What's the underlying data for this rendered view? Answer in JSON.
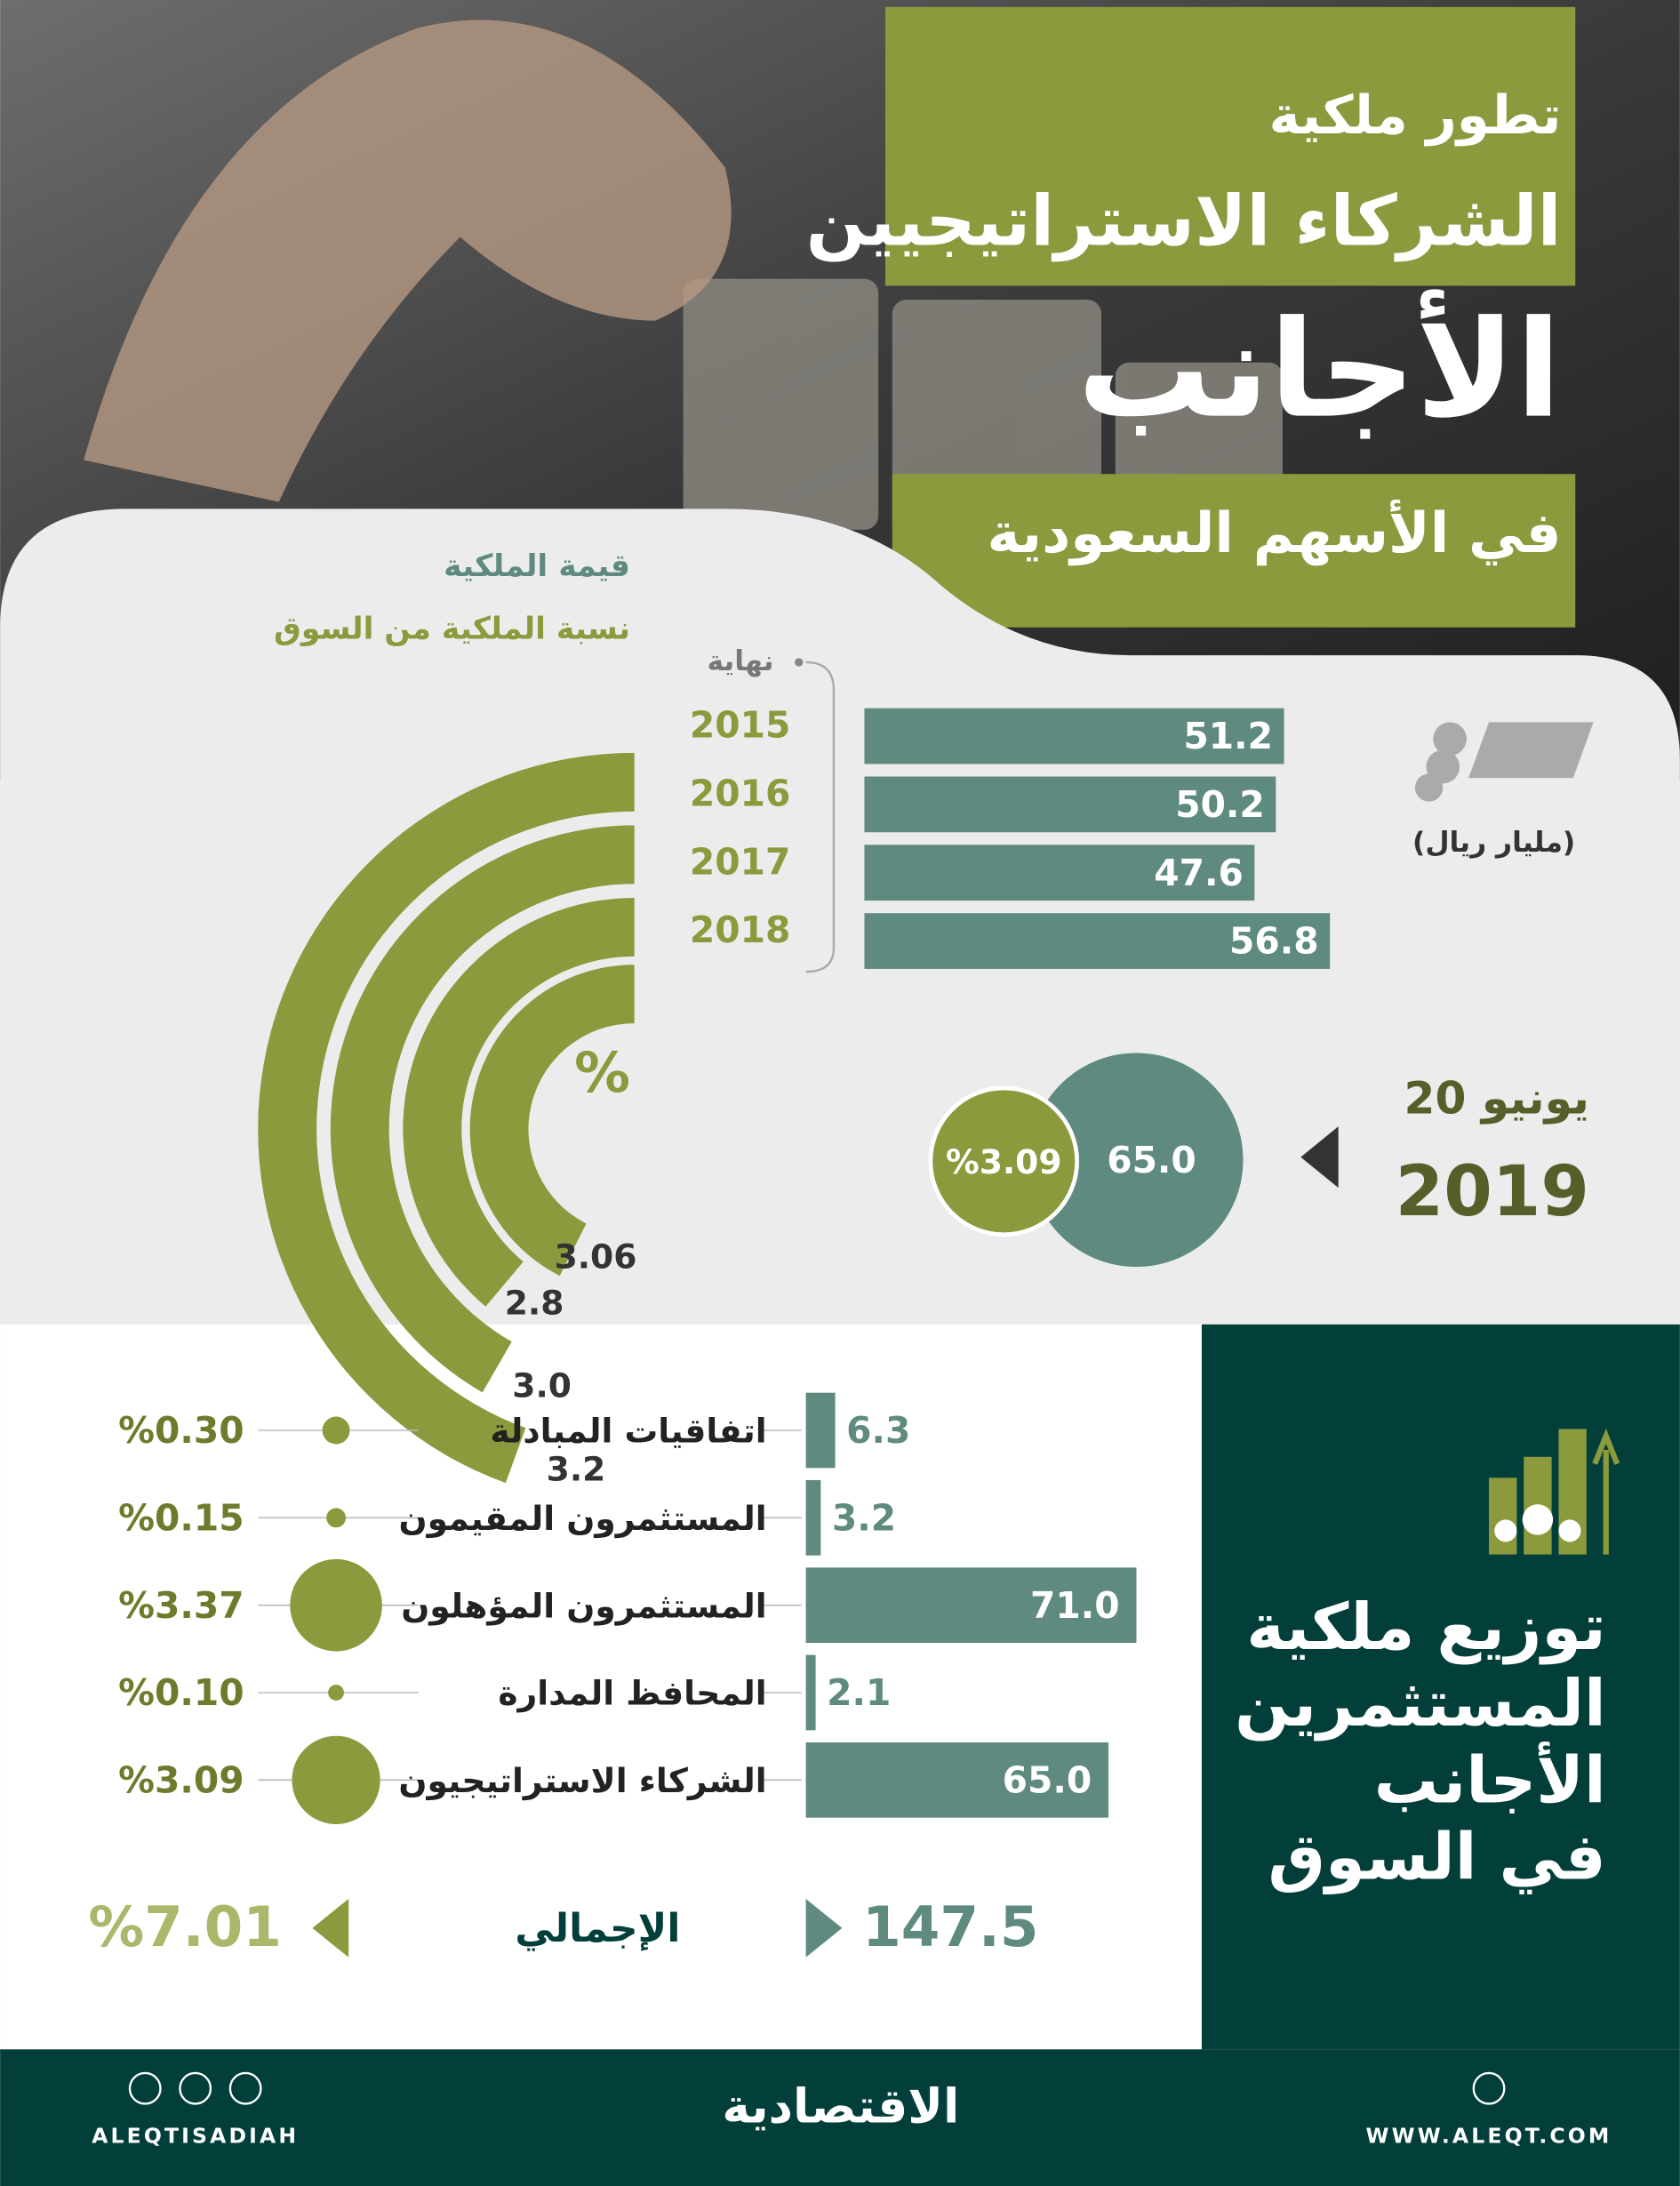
{
  "header": {
    "title_lines": [
      "تطور ملكية",
      "الشركاء الاستراتيجيين",
      "الأجانب",
      "في الأسهم السعودية"
    ]
  },
  "legend": {
    "value": "قيمة الملكية",
    "share": "نسبة الملكية من السوق"
  },
  "yearly": {
    "period_label": "نهاية",
    "unit": "(مليار ريال)",
    "percent_symbol": "%",
    "years": [
      "2015",
      "2016",
      "2017",
      "2018"
    ],
    "values": [
      51.2,
      50.2,
      47.6,
      56.8
    ],
    "value_labels": [
      "51.2",
      "50.2",
      "47.6",
      "56.8"
    ],
    "shares": [
      3.2,
      3.0,
      2.8,
      3.06
    ],
    "share_labels": [
      "3.2",
      "3.0",
      "2.8",
      "3.06"
    ],
    "bar_color": "#5f8a80",
    "arc_color": "#8a9a3c"
  },
  "latest": {
    "day": "20 يونيو",
    "year": "2019",
    "value": 65.0,
    "value_label": "65.0",
    "share": 3.09,
    "share_label": "%3.09"
  },
  "distribution": {
    "title_lines": [
      "توزيع ملكية",
      "المستثمرين",
      "الأجانب",
      "في السوق"
    ],
    "categories": [
      "اتفاقيات المبادلة",
      "المستثمرون المقيمون",
      "المستثمرون المؤهلون",
      "المحافظ المدارة",
      "الشركاء الاستراتيجيون"
    ],
    "values": [
      6.3,
      3.2,
      71.0,
      2.1,
      65.0
    ],
    "value_labels": [
      "6.3",
      "3.2",
      "71.0",
      "2.1",
      "65.0"
    ],
    "shares": [
      0.3,
      0.15,
      3.37,
      0.1,
      3.09
    ],
    "share_labels": [
      "%0.30",
      "%0.15",
      "%3.37",
      "%0.10",
      "%3.09"
    ],
    "total_label": "الإجمالي",
    "total_value": 147.5,
    "total_share": 7.01,
    "total_share_label": "%7.01"
  },
  "footer": {
    "handle": "ALEQTISADIAH",
    "brand": "الاقتصادية",
    "website": "WWW.ALEQT.COM"
  }
}
